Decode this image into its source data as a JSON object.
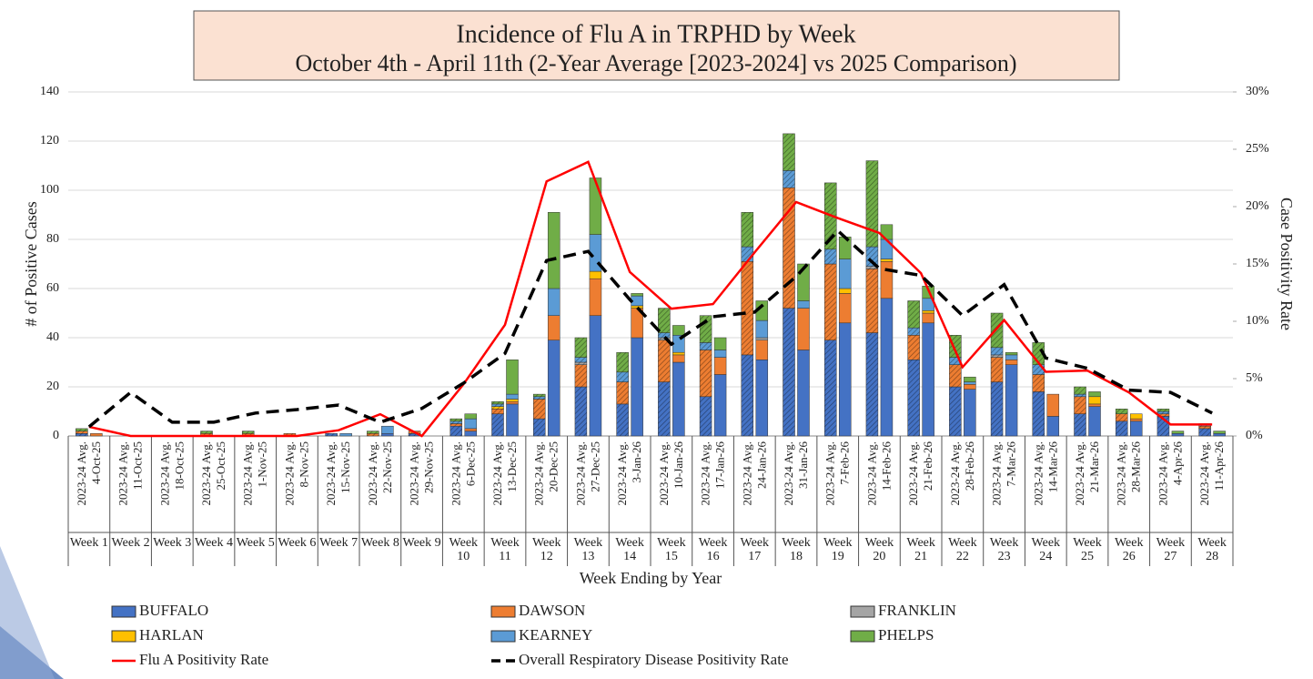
{
  "chart_data": {
    "type": "bar",
    "title": "Incidence of Flu A in TRPHD by Week",
    "subtitle": "October 4th - April 11th (2-Year Average [2023-2024] vs 2025 Comparison)",
    "x_label": "Week Ending by Year",
    "y_label": "# of Positive Cases",
    "y2_label": "Case Positivity Rate",
    "stacked": true,
    "categories": [
      "2023-24 Avg.",
      "4-Oct-25",
      "2023-24 Avg.",
      "11-Oct-25",
      "2023-24 Avg.",
      "18-Oct-25",
      "2023-24 Avg.",
      "25-Oct-25",
      "2023-24 Avg.",
      "1-Nov-25",
      "2023-24 Avg.",
      "8-Nov-25",
      "2023-24 Avg.",
      "15-Nov-25",
      "2023-24 Avg.",
      "22-Nov-25",
      "2023-24 Avg.",
      "29-Nov-25",
      "2023-24 Avg.",
      "6-Dec-25",
      "2023-24 Avg.",
      "13-Dec-25",
      "2023-24 Avg.",
      "20-Dec-25",
      "2023-24 Avg.",
      "27-Dec-25",
      "2023-24 Avg.",
      "3-Jan-26",
      "2023-24 Avg.",
      "10-Jan-26",
      "2023-24 Avg.",
      "17-Jan-26",
      "2023-24 Avg.",
      "24-Jan-26",
      "2023-24 Avg.",
      "31-Jan-26",
      "2023-24 Avg.",
      "7-Feb-26",
      "2023-24 Avg.",
      "14-Feb-26",
      "2023-24 Avg.",
      "21-Feb-26",
      "2023-24 Avg.",
      "28-Feb-26",
      "2023-24 Avg.",
      "7-Mar-26",
      "2023-24 Avg.",
      "14-Mar-26",
      "2023-24 Avg.",
      "21-Mar-26",
      "2023-24 Avg.",
      "28-Mar-26",
      "2023-24 Avg.",
      "4-Apr-26",
      "2023-24 Avg.",
      "11-Apr-26"
    ],
    "weeks": [
      "Week 1",
      "Week 2",
      "Week 3",
      "Week 4",
      "Week 5",
      "Week 6",
      "Week 7",
      "Week 8",
      "Week 9",
      "Week 10",
      "Week 11",
      "Week 12",
      "Week 13",
      "Week 14",
      "Week 15",
      "Week 16",
      "Week 17",
      "Week 18",
      "Week 19",
      "Week 20",
      "Week 21",
      "Week 22",
      "Week 23",
      "Week 24",
      "Week 25",
      "Week 26",
      "Week 27",
      "Week 28"
    ],
    "series": [
      {
        "name": "BUFFALO",
        "color": "#4472c4",
        "values": [
          1,
          0,
          0,
          0,
          0,
          0,
          0,
          0,
          0,
          0,
          0,
          0,
          1,
          0,
          0,
          1,
          1,
          0,
          4,
          2,
          9,
          13,
          7,
          39,
          20,
          49,
          13,
          40,
          22,
          30,
          16,
          25,
          33,
          31,
          52,
          35,
          39,
          46,
          42,
          56,
          31,
          46,
          20,
          19,
          22,
          29,
          18,
          8,
          9,
          12,
          6,
          6,
          8,
          1,
          3,
          1
        ]
      },
      {
        "name": "DAWSON",
        "color": "#ed7d31",
        "values": [
          1,
          1,
          0,
          0,
          0,
          0,
          1,
          0,
          1,
          0,
          1,
          0,
          0,
          0,
          1,
          0,
          1,
          0,
          1,
          1,
          2,
          1,
          8,
          10,
          9,
          15,
          9,
          12,
          17,
          3,
          19,
          7,
          38,
          8,
          49,
          17,
          31,
          12,
          26,
          15,
          10,
          4,
          9,
          2,
          10,
          2,
          7,
          9,
          7,
          1,
          3,
          1,
          1,
          0,
          1,
          0
        ]
      },
      {
        "name": "FRANKLIN",
        "color": "#a5a5a5",
        "values": [
          0,
          0,
          0,
          0,
          0,
          0,
          0,
          0,
          0,
          0,
          0,
          0,
          0,
          0,
          0,
          0,
          0,
          0,
          0,
          0,
          0,
          0,
          0,
          0,
          1,
          0,
          0,
          0,
          1,
          0,
          0,
          0,
          0,
          1,
          0,
          0,
          0,
          0,
          1,
          0,
          0,
          0,
          0,
          0,
          1,
          0,
          0,
          0,
          0,
          0,
          0,
          0,
          0,
          0,
          0,
          0
        ]
      },
      {
        "name": "HARLAN",
        "color": "#ffc000",
        "values": [
          0,
          0,
          0,
          0,
          0,
          0,
          0,
          0,
          0,
          0,
          0,
          0,
          0,
          0,
          0,
          0,
          0,
          0,
          0,
          0,
          1,
          1,
          0,
          0,
          0,
          3,
          0,
          1,
          0,
          1,
          0,
          0,
          0,
          0,
          0,
          0,
          0,
          2,
          0,
          1,
          0,
          1,
          0,
          0,
          0,
          0,
          0,
          0,
          0,
          3,
          0,
          2,
          0,
          0,
          0,
          0
        ]
      },
      {
        "name": "KEARNEY",
        "color": "#5b9bd5",
        "values": [
          0,
          0,
          0,
          0,
          0,
          0,
          0,
          0,
          0,
          0,
          0,
          0,
          0,
          1,
          0,
          3,
          0,
          0,
          1,
          4,
          1,
          2,
          1,
          11,
          2,
          15,
          4,
          4,
          2,
          7,
          3,
          3,
          6,
          7,
          7,
          3,
          6,
          12,
          8,
          8,
          3,
          5,
          3,
          1,
          3,
          2,
          4,
          0,
          1,
          0,
          0,
          0,
          1,
          0,
          1,
          0
        ]
      },
      {
        "name": "PHELPS",
        "color": "#70ad47",
        "values": [
          1,
          0,
          0,
          0,
          0,
          0,
          1,
          0,
          1,
          0,
          0,
          0,
          0,
          0,
          1,
          0,
          0,
          0,
          1,
          2,
          1,
          14,
          1,
          31,
          8,
          23,
          8,
          1,
          10,
          4,
          11,
          5,
          14,
          8,
          15,
          15,
          27,
          9,
          35,
          6,
          11,
          5,
          9,
          2,
          14,
          1,
          9,
          0,
          3,
          2,
          2,
          0,
          1,
          1,
          0,
          1
        ]
      }
    ],
    "lines": [
      {
        "name": "Flu A Positivity Rate",
        "color": "#ff0000",
        "dashed": false,
        "axis": "y2",
        "values": [
          0.8,
          0,
          0,
          0,
          0,
          0,
          0.5,
          1.9,
          0,
          4.5,
          9.7,
          22.2,
          23.9,
          14.3,
          11.1,
          11.5,
          16,
          20.4,
          19,
          17.7,
          14.2,
          6,
          10.1,
          5.6,
          5.7,
          3.8,
          1,
          1
        ]
      },
      {
        "name": "Overall Respiratory Disease Positivity Rate",
        "color": "#000000",
        "dashed": true,
        "axis": "y2",
        "values": [
          0.8,
          3.8,
          1.2,
          1.2,
          2,
          2.3,
          2.7,
          1.2,
          2.4,
          4.6,
          7.2,
          15.3,
          16.1,
          11.9,
          8,
          10.4,
          10.8,
          13.9,
          17.9,
          14.6,
          14,
          10.5,
          13.2,
          6.8,
          5.9,
          4,
          3.8,
          2
        ]
      }
    ],
    "ylim": [
      0,
      140
    ],
    "yticks": [
      0,
      20,
      40,
      60,
      80,
      100,
      120,
      140
    ],
    "y2lim": [
      0,
      30
    ],
    "y2ticks": [
      {
        "value": 0,
        "label": "0%"
      },
      {
        "value": 5,
        "label": "5%"
      },
      {
        "value": 10,
        "label": "10%"
      },
      {
        "value": 15,
        "label": "15%"
      },
      {
        "value": 20,
        "label": "20%"
      },
      {
        "value": 25,
        "label": "25%"
      },
      {
        "value": 30,
        "label": "30%"
      }
    ],
    "grid": true,
    "legend": "bottom"
  }
}
